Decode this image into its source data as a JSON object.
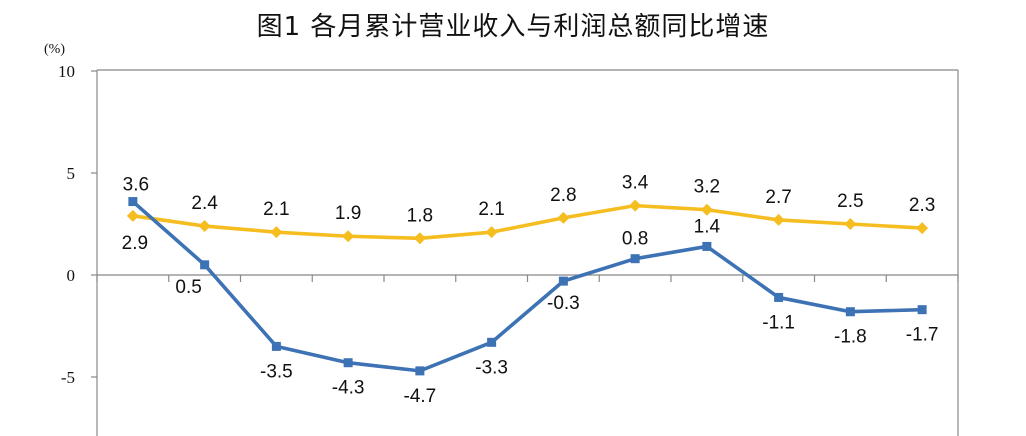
{
  "title": "图1 各月累计营业收入与利润总额同比增速",
  "unit": "(%)",
  "chart_data": {
    "type": "line",
    "title": "图1 各月累计营业收入与利润总额同比增速",
    "ylabel": "(%)",
    "xlabel": "",
    "ylim": [
      -10,
      10
    ],
    "y_ticks": [
      "10",
      "5",
      "0",
      "-5"
    ],
    "grid": false,
    "legend": "none",
    "x": [
      1,
      2,
      3,
      4,
      5,
      6,
      7,
      8,
      9,
      10,
      11,
      12
    ],
    "series": [
      {
        "color": "#F5BD1F",
        "marker": "diamond",
        "values": [
          2.9,
          2.4,
          2.1,
          1.9,
          1.8,
          2.1,
          2.8,
          3.4,
          3.2,
          2.7,
          2.5,
          2.3
        ],
        "labels": [
          "2.9",
          "2.4",
          "2.1",
          "1.9",
          "1.8",
          "2.1",
          "2.8",
          "3.4",
          "3.2",
          "2.7",
          "2.5",
          "2.3"
        ]
      },
      {
        "color": "#3D72B4",
        "marker": "square",
        "values": [
          3.6,
          0.5,
          -3.5,
          -4.3,
          -4.7,
          -3.3,
          -0.3,
          0.8,
          1.4,
          -1.1,
          -1.8,
          -1.7
        ],
        "labels": [
          "3.6",
          "0.5",
          "-3.5",
          "-4.3",
          "-4.7",
          "-3.3",
          "-0.3",
          "0.8",
          "1.4",
          "-1.1",
          "-1.8",
          "-1.7"
        ]
      }
    ]
  }
}
